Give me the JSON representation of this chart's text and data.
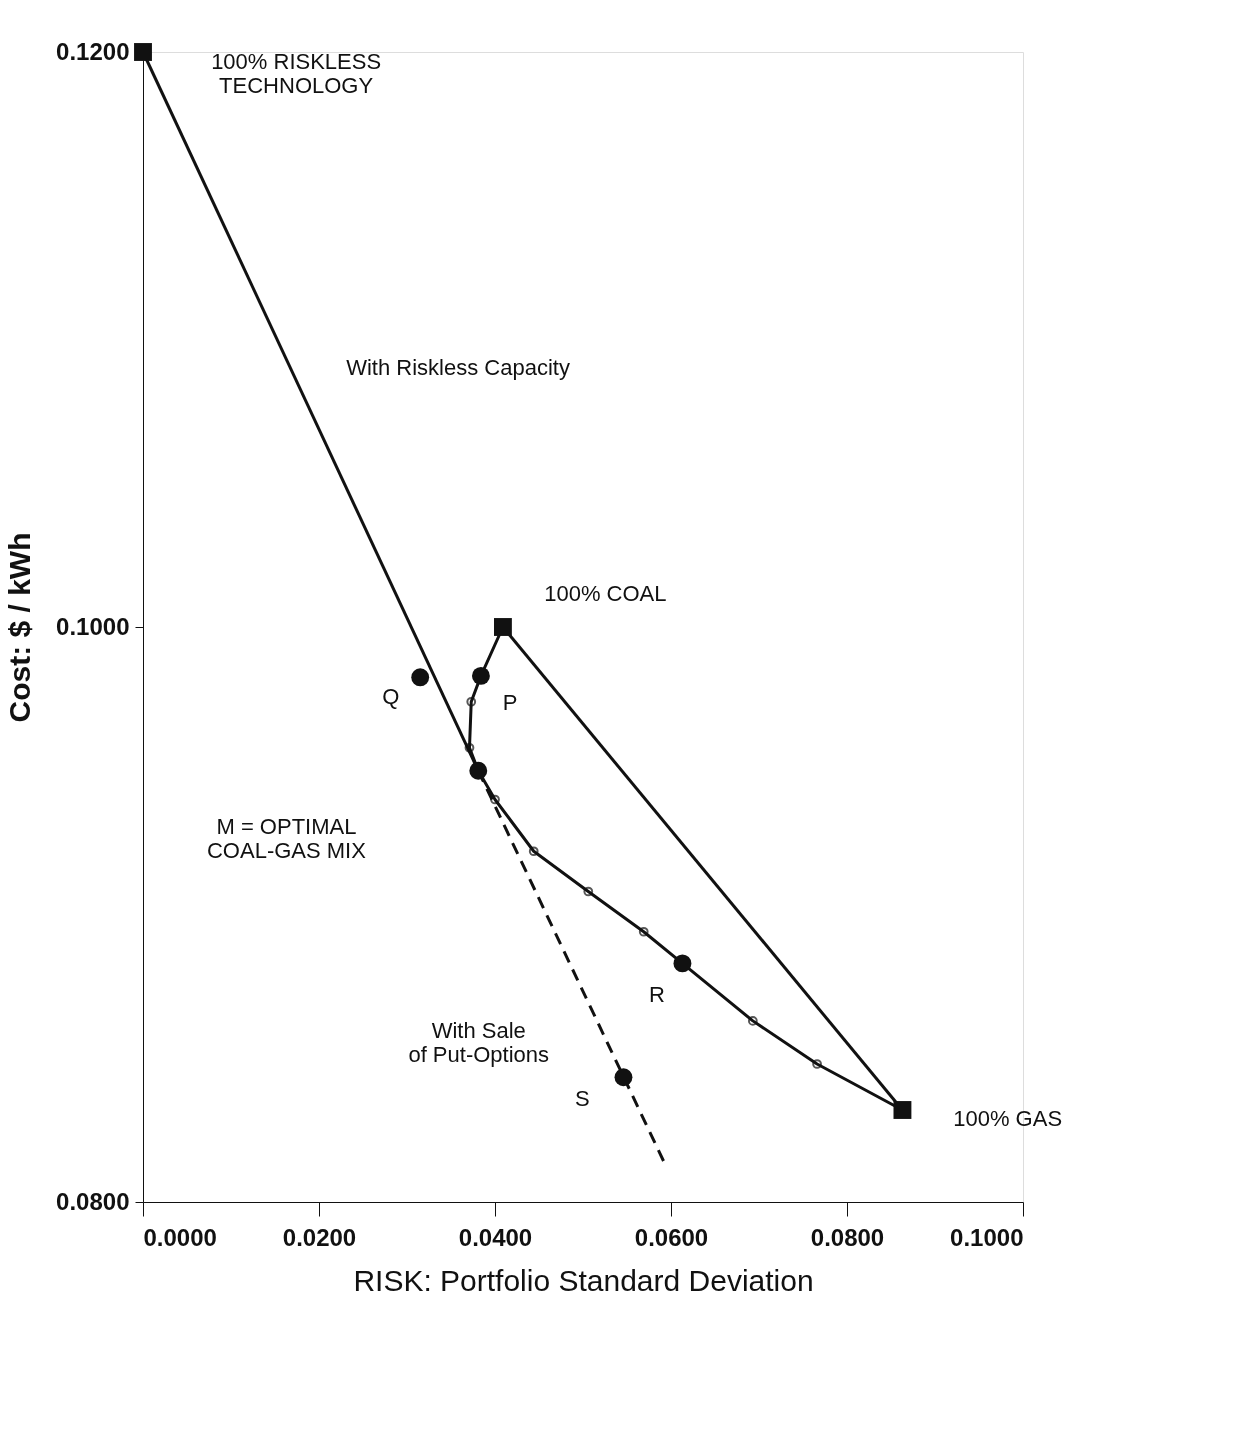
{
  "chart_data": {
    "type": "line",
    "xlabel": "RISK:  Portfolio Standard Deviation",
    "ylabel": "Cost:  $ / kWh",
    "xlim": [
      0,
      0.1
    ],
    "ylim": [
      0.08,
      0.12
    ],
    "xticks": [
      {
        "value": 0,
        "label": "0.0000"
      },
      {
        "value": 0.02,
        "label": "0.0200"
      },
      {
        "value": 0.04,
        "label": "0.0400"
      },
      {
        "value": 0.06,
        "label": "0.0600"
      },
      {
        "value": 0.08,
        "label": "0.0800"
      },
      {
        "value": 0.1,
        "label": "0.1000"
      }
    ],
    "yticks": [
      {
        "value": 0.08,
        "label": "0.0800"
      },
      {
        "value": 0.1,
        "label": "0.1000"
      },
      {
        "value": 0.12,
        "label": "0.1200"
      }
    ],
    "grid": false,
    "series": [
      {
        "color": "#111111",
        "x": [
          0,
          0.0381
        ],
        "values": [
          0.12,
          0.095
        ]
      },
      {
        "color": "#111111",
        "line_style": "dashed",
        "x": [
          0.0381,
          0.0595
        ],
        "values": [
          0.095,
          0.0812
        ]
      },
      {
        "color": "#111111",
        "marker": "circle",
        "x": [
          0.0409,
          0.0384,
          0.0373,
          0.0371,
          0.0381,
          0.04,
          0.0444,
          0.0506,
          0.0569,
          0.0613,
          0.0693,
          0.0766,
          0.0863
        ],
        "values": [
          0.1,
          0.0983,
          0.0974,
          0.0958,
          0.095,
          0.094,
          0.0922,
          0.0908,
          0.0894,
          0.0883,
          0.0863,
          0.0848,
          0.0832
        ]
      },
      {
        "color": "#111111",
        "x": [
          0.0409,
          0.0863
        ],
        "values": [
          0.1,
          0.0832
        ]
      },
      {
        "type": "scatter",
        "color": "#111111",
        "marker": "circle",
        "x": [
          0.0315,
          0.0384,
          0.0381,
          0.0613,
          0.0546
        ],
        "values": [
          0.09825,
          0.0983,
          0.095,
          0.0883,
          0.08434
        ]
      },
      {
        "type": "scatter",
        "color": "#111111",
        "marker": "square",
        "x": [
          0,
          0.0409,
          0.0863
        ],
        "values": [
          0.12,
          0.1,
          0.0832
        ]
      }
    ],
    "annotations": [
      "100% RISKLESS\nTECHNOLOGY",
      "With Riskless Capacity",
      {
        "text": "100% COAL",
        "x": 0.0409,
        "y": 0.1
      },
      {
        "text": "Q",
        "x": 0.0315,
        "y": 0.09825
      },
      {
        "text": "P",
        "x": 0.0384,
        "y": 0.0983
      },
      "M = OPTIMAL\nCOAL-GAS MIX",
      {
        "text": "R",
        "x": 0.0613,
        "y": 0.0883
      },
      {
        "text": "With Sale\nof Put-Options",
        "x": 0.05,
        "y": 0.0873
      },
      {
        "text": "S",
        "x": 0.0546,
        "y": 0.08434
      },
      {
        "text": "100% GAS",
        "x": 0.0863,
        "y": 0.0832
      }
    ]
  }
}
